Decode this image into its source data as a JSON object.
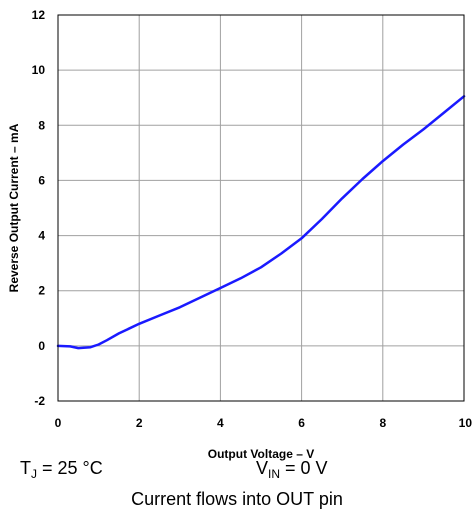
{
  "chart_data": {
    "type": "line",
    "title": "",
    "xlabel": "Output Voltage – V",
    "ylabel": "Reverse Output Current – mA",
    "xlim": [
      0,
      10
    ],
    "ylim": [
      -2,
      12
    ],
    "grid": true,
    "x_ticks": [
      "0",
      "2",
      "4",
      "6",
      "8",
      "10"
    ],
    "y_ticks": [
      "-2",
      "0",
      "2",
      "4",
      "6",
      "8",
      "10",
      "12"
    ],
    "line_color": "#1a1aff",
    "series": [
      {
        "x": [
          0,
          0.3,
          0.5,
          0.8,
          1.0,
          1.2,
          1.5,
          2.0,
          2.5,
          3.0,
          3.5,
          4.0,
          4.5,
          5.0,
          5.5,
          6.0,
          6.5,
          7.0,
          7.5,
          8.0,
          8.5,
          9.0,
          9.5,
          10.0
        ],
        "y": [
          0,
          -0.02,
          -0.08,
          -0.05,
          0.05,
          0.2,
          0.45,
          0.8,
          1.1,
          1.4,
          1.75,
          2.1,
          2.45,
          2.85,
          3.35,
          3.9,
          4.6,
          5.35,
          6.05,
          6.7,
          7.3,
          7.85,
          8.45,
          9.05
        ]
      }
    ]
  },
  "conditions": {
    "tj_main": "T",
    "tj_sub": "J",
    "tj_rest": " = 25 °C",
    "vin_main": "V",
    "vin_sub": "IN",
    "vin_rest": " = 0 V",
    "note": "Current flows into OUT pin"
  }
}
